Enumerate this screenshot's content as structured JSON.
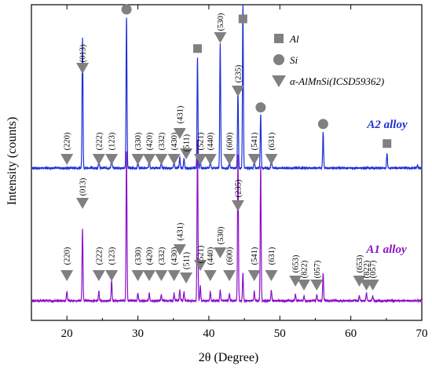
{
  "chart_data": {
    "type": "line",
    "xlabel": "2θ (Degree)",
    "ylabel": "Intensity (counts)",
    "xlim": [
      15,
      70
    ],
    "x_ticks": [
      20,
      30,
      40,
      50,
      60,
      70
    ],
    "y_ticks_shown": false,
    "grid": false,
    "legend_placement": "top-right",
    "legend": [
      {
        "marker": "square",
        "label": "Al"
      },
      {
        "marker": "circle",
        "label": "Si"
      },
      {
        "marker": "triangle-down",
        "label": "α-AlMnSi(ICSD59362)"
      }
    ],
    "series": [
      {
        "name": "A2 alloy",
        "color": "#1f2fd6",
        "baseline": 0.5,
        "peaks": [
          {
            "x": 22.2,
            "y": 0.87
          },
          {
            "x": 24.5,
            "y": 0.05
          },
          {
            "x": 26.3,
            "y": 0.08
          },
          {
            "x": 28.4,
            "y": 1.0
          },
          {
            "x": 30.0,
            "y": 0.04
          },
          {
            "x": 31.6,
            "y": 0.06
          },
          {
            "x": 33.3,
            "y": 0.04
          },
          {
            "x": 35.1,
            "y": 0.05
          },
          {
            "x": 35.9,
            "y": 0.07
          },
          {
            "x": 36.5,
            "y": 0.06
          },
          {
            "x": 38.4,
            "y": 0.73
          },
          {
            "x": 38.8,
            "y": 0.05
          },
          {
            "x": 40.2,
            "y": 0.05
          },
          {
            "x": 41.6,
            "y": 0.83
          },
          {
            "x": 42.9,
            "y": 0.04
          },
          {
            "x": 44.1,
            "y": 0.52
          },
          {
            "x": 44.8,
            "y": 1.08
          },
          {
            "x": 46.4,
            "y": 0.05
          },
          {
            "x": 47.3,
            "y": 0.35
          },
          {
            "x": 48.8,
            "y": 0.06
          },
          {
            "x": 56.1,
            "y": 0.24
          },
          {
            "x": 65.1,
            "y": 0.1
          },
          {
            "x": 69.4,
            "y": 0.02
          }
        ],
        "peak_markers": [
          {
            "x": 22.2,
            "hkl": "(013)",
            "marker": "triangle"
          },
          {
            "x": 28.4,
            "hkl": "",
            "marker": "circle"
          },
          {
            "x": 38.4,
            "hkl": "",
            "marker": "square"
          },
          {
            "x": 41.6,
            "hkl": "(530)",
            "marker": "triangle"
          },
          {
            "x": 44.8,
            "hkl": "",
            "marker": "square"
          },
          {
            "x": 44.1,
            "hkl": "(235)",
            "marker": "triangle"
          },
          {
            "x": 47.3,
            "hkl": "",
            "marker": "circle"
          },
          {
            "x": 56.1,
            "hkl": "",
            "marker": "circle"
          },
          {
            "x": 65.1,
            "hkl": "",
            "marker": "square"
          },
          {
            "x": 20.0,
            "hkl": "(220)",
            "marker": "triangle"
          },
          {
            "x": 24.5,
            "hkl": "(222)",
            "marker": "triangle"
          },
          {
            "x": 26.3,
            "hkl": "(123)",
            "marker": "triangle"
          },
          {
            "x": 30.0,
            "hkl": "(330)",
            "marker": "triangle"
          },
          {
            "x": 31.6,
            "hkl": "(420)",
            "marker": "triangle"
          },
          {
            "x": 33.3,
            "hkl": "(332)",
            "marker": "triangle"
          },
          {
            "x": 35.1,
            "hkl": "(430)",
            "marker": "triangle"
          },
          {
            "x": 35.9,
            "hkl": "(431)",
            "marker": "triangle"
          },
          {
            "x": 36.8,
            "hkl": "(511)",
            "marker": "triangle"
          },
          {
            "x": 38.8,
            "hkl": "(521)",
            "marker": "triangle"
          },
          {
            "x": 40.2,
            "hkl": "(440)",
            "marker": "triangle"
          },
          {
            "x": 42.9,
            "hkl": "(600)",
            "marker": "triangle"
          },
          {
            "x": 46.4,
            "hkl": "(541)",
            "marker": "triangle"
          },
          {
            "x": 48.8,
            "hkl": "(631)",
            "marker": "triangle"
          }
        ]
      },
      {
        "name": "A1 alloy",
        "color": "#8b0fc8",
        "baseline": 0.0,
        "peaks": [
          {
            "x": 20.0,
            "y": 0.06
          },
          {
            "x": 22.2,
            "y": 0.47
          },
          {
            "x": 24.5,
            "y": 0.06
          },
          {
            "x": 26.3,
            "y": 0.13
          },
          {
            "x": 28.4,
            "y": 0.97
          },
          {
            "x": 30.0,
            "y": 0.05
          },
          {
            "x": 31.6,
            "y": 0.05
          },
          {
            "x": 33.3,
            "y": 0.04
          },
          {
            "x": 35.1,
            "y": 0.05
          },
          {
            "x": 35.9,
            "y": 0.07
          },
          {
            "x": 36.5,
            "y": 0.06
          },
          {
            "x": 38.4,
            "y": 1.05
          },
          {
            "x": 38.8,
            "y": 0.1
          },
          {
            "x": 40.2,
            "y": 0.06
          },
          {
            "x": 41.6,
            "y": 0.07
          },
          {
            "x": 42.9,
            "y": 0.05
          },
          {
            "x": 44.1,
            "y": 0.95
          },
          {
            "x": 44.8,
            "y": 0.18
          },
          {
            "x": 46.4,
            "y": 0.06
          },
          {
            "x": 47.3,
            "y": 0.88
          },
          {
            "x": 48.8,
            "y": 0.07
          },
          {
            "x": 52.2,
            "y": 0.04
          },
          {
            "x": 53.4,
            "y": 0.03
          },
          {
            "x": 55.2,
            "y": 0.04
          },
          {
            "x": 56.1,
            "y": 0.18
          },
          {
            "x": 61.2,
            "y": 0.03
          },
          {
            "x": 62.2,
            "y": 0.05
          },
          {
            "x": 63.1,
            "y": 0.03
          }
        ],
        "peak_markers": [
          {
            "x": 22.2,
            "hkl": "(013)",
            "marker": "triangle"
          },
          {
            "x": 44.1,
            "hkl": "(235)",
            "marker": "triangle"
          },
          {
            "x": 20.0,
            "hkl": "(220)",
            "marker": "triangle"
          },
          {
            "x": 24.5,
            "hkl": "(222)",
            "marker": "triangle"
          },
          {
            "x": 26.3,
            "hkl": "(123)",
            "marker": "triangle"
          },
          {
            "x": 30.0,
            "hkl": "(330)",
            "marker": "triangle"
          },
          {
            "x": 31.6,
            "hkl": "(420)",
            "marker": "triangle"
          },
          {
            "x": 33.3,
            "hkl": "(332)",
            "marker": "triangle"
          },
          {
            "x": 35.1,
            "hkl": "(430)",
            "marker": "triangle"
          },
          {
            "x": 35.9,
            "hkl": "(431)",
            "marker": "triangle"
          },
          {
            "x": 36.8,
            "hkl": "(511)",
            "marker": "triangle"
          },
          {
            "x": 38.8,
            "hkl": "(521)",
            "marker": "triangle"
          },
          {
            "x": 40.2,
            "hkl": "(440)",
            "marker": "triangle"
          },
          {
            "x": 41.6,
            "hkl": "(530)",
            "marker": "triangle"
          },
          {
            "x": 42.9,
            "hkl": "(600)",
            "marker": "triangle"
          },
          {
            "x": 46.4,
            "hkl": "(541)",
            "marker": "triangle"
          },
          {
            "x": 48.8,
            "hkl": "(631)",
            "marker": "triangle"
          },
          {
            "x": 52.2,
            "hkl": "(653)",
            "marker": "triangle"
          },
          {
            "x": 53.4,
            "hkl": "(822)",
            "marker": "triangle"
          },
          {
            "x": 55.2,
            "hkl": "(057)",
            "marker": "triangle"
          },
          {
            "x": 61.2,
            "hkl": "(653)",
            "marker": "triangle"
          },
          {
            "x": 62.2,
            "hkl": "(822)",
            "marker": "triangle"
          },
          {
            "x": 63.1,
            "hkl": "(057)",
            "marker": "triangle"
          }
        ]
      }
    ]
  },
  "colors": {
    "marker_fill": "#808080",
    "axis": "#000000"
  }
}
